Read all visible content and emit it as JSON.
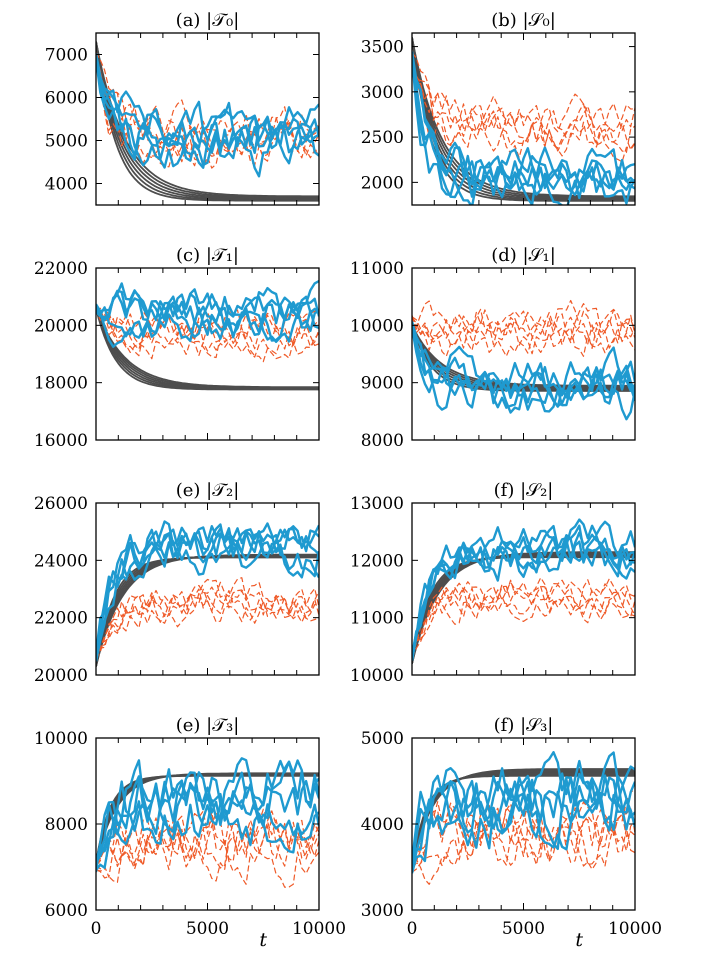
{
  "colors": {
    "model": "#4d4d4d",
    "sim_a": "#1f9ad0",
    "sim_b": "#ef5a28"
  },
  "chart_data": [
    {
      "id": "T0",
      "title": "(a) |𝒯₀|",
      "type": "line",
      "ylim": [
        3500,
        7500
      ],
      "yticks": [
        4000,
        5000,
        6000,
        7000
      ],
      "xlim": [
        0,
        10000
      ],
      "xticks": [
        0,
        5000,
        10000
      ],
      "xlabel": "",
      "series": [
        {
          "role": "model",
          "count": 6,
          "start": 7300,
          "plateau": 3650,
          "tau": 1100,
          "spread": 50,
          "noise": 0
        },
        {
          "role": "sim_b",
          "count": 5,
          "start": 7000,
          "plateau": 5050,
          "tau": 700,
          "spread": 250,
          "noise": 380,
          "seed": 11
        },
        {
          "role": "sim_a",
          "count": 5,
          "start": 7000,
          "plateau": 5050,
          "tau": 700,
          "spread": 250,
          "noise": 420,
          "seed": 29
        }
      ]
    },
    {
      "id": "S0",
      "title": "(b) |𝒮₀|",
      "type": "line",
      "ylim": [
        1750,
        3650
      ],
      "yticks": [
        2000,
        2500,
        3000,
        3500
      ],
      "xlim": [
        0,
        10000
      ],
      "xticks": [
        0,
        5000,
        10000
      ],
      "xlabel": "",
      "series": [
        {
          "role": "model",
          "count": 6,
          "start": 3600,
          "plateau": 1820,
          "tau": 1100,
          "spread": 25,
          "noise": 0
        },
        {
          "role": "sim_b",
          "count": 5,
          "start": 3400,
          "plateau": 2600,
          "tau": 700,
          "spread": 120,
          "noise": 170,
          "seed": 13
        },
        {
          "role": "sim_a",
          "count": 5,
          "start": 3400,
          "plateau": 2050,
          "tau": 700,
          "spread": 120,
          "noise": 190,
          "seed": 31
        }
      ]
    },
    {
      "id": "T1",
      "title": "(c) |𝒯₁|",
      "type": "line",
      "ylim": [
        16000,
        22000
      ],
      "yticks": [
        16000,
        18000,
        20000,
        22000
      ],
      "xlim": [
        0,
        10000
      ],
      "xticks": [
        0,
        5000,
        10000
      ],
      "xlabel": "",
      "series": [
        {
          "role": "model",
          "count": 6,
          "start": 20600,
          "plateau": 17800,
          "tau": 1100,
          "spread": 40,
          "noise": 0
        },
        {
          "role": "sim_b",
          "count": 5,
          "start": 20600,
          "plateau": 19700,
          "tau": 700,
          "spread": 300,
          "noise": 450,
          "seed": 17
        },
        {
          "role": "sim_a",
          "count": 5,
          "start": 20600,
          "plateau": 20400,
          "tau": 700,
          "spread": 400,
          "noise": 550,
          "seed": 37
        }
      ]
    },
    {
      "id": "S1",
      "title": "(d) |𝒮₁|",
      "type": "line",
      "ylim": [
        8000,
        11000
      ],
      "yticks": [
        8000,
        9000,
        10000,
        11000
      ],
      "xlim": [
        0,
        10000
      ],
      "xticks": [
        0,
        5000,
        10000
      ],
      "xlabel": "",
      "series": [
        {
          "role": "model",
          "count": 6,
          "start": 10000,
          "plateau": 8900,
          "tau": 1100,
          "spread": 45,
          "noise": 0
        },
        {
          "role": "sim_b",
          "count": 5,
          "start": 10200,
          "plateau": 9900,
          "tau": 700,
          "spread": 180,
          "noise": 260,
          "seed": 19
        },
        {
          "role": "sim_a",
          "count": 5,
          "start": 10000,
          "plateau": 8950,
          "tau": 700,
          "spread": 200,
          "noise": 280,
          "seed": 41
        }
      ]
    },
    {
      "id": "T2",
      "title": "(e) |𝒯₂|",
      "type": "line",
      "ylim": [
        20000,
        26000
      ],
      "yticks": [
        20000,
        22000,
        24000,
        26000
      ],
      "xlim": [
        0,
        10000
      ],
      "xticks": [
        0,
        5000,
        10000
      ],
      "xlabel": "",
      "series": [
        {
          "role": "model",
          "count": 6,
          "start": 20300,
          "plateau": 24150,
          "tau": 1000,
          "spread": 50,
          "noise": 0
        },
        {
          "role": "sim_b",
          "count": 5,
          "start": 20600,
          "plateau": 22500,
          "tau": 700,
          "spread": 250,
          "noise": 450,
          "seed": 23
        },
        {
          "role": "sim_a",
          "count": 5,
          "start": 20600,
          "plateau": 24500,
          "tau": 700,
          "spread": 350,
          "noise": 550,
          "seed": 43
        }
      ]
    },
    {
      "id": "S2",
      "title": "(f) |𝒮₂|",
      "type": "line",
      "ylim": [
        10000,
        13000
      ],
      "yticks": [
        10000,
        11000,
        12000,
        13000
      ],
      "xlim": [
        0,
        10000
      ],
      "xticks": [
        0,
        5000,
        10000
      ],
      "xlabel": "",
      "series": [
        {
          "role": "model",
          "count": 6,
          "start": 10200,
          "plateau": 12100,
          "tau": 1000,
          "spread": 45,
          "noise": 0
        },
        {
          "role": "sim_b",
          "count": 5,
          "start": 10300,
          "plateau": 11350,
          "tau": 700,
          "spread": 130,
          "noise": 220,
          "seed": 27
        },
        {
          "role": "sim_a",
          "count": 5,
          "start": 10300,
          "plateau": 12150,
          "tau": 700,
          "spread": 160,
          "noise": 260,
          "seed": 47
        }
      ]
    },
    {
      "id": "T3",
      "title": "(e) |𝒯₃|",
      "type": "line",
      "ylim": [
        6000,
        10000
      ],
      "yticks": [
        6000,
        8000,
        10000
      ],
      "xlim": [
        0,
        10000
      ],
      "xticks": [
        0,
        5000,
        10000
      ],
      "xlabel": "t",
      "series": [
        {
          "role": "model",
          "count": 6,
          "start": 7100,
          "plateau": 9150,
          "tau": 800,
          "spread": 30,
          "noise": 0
        },
        {
          "role": "sim_b",
          "count": 5,
          "start": 7000,
          "plateau": 7600,
          "tau": 600,
          "spread": 250,
          "noise": 500,
          "seed": 33
        },
        {
          "role": "sim_a",
          "count": 5,
          "start": 7000,
          "plateau": 8500,
          "tau": 600,
          "spread": 300,
          "noise": 550,
          "seed": 53
        }
      ]
    },
    {
      "id": "S3",
      "title": "(f) |𝒮₃|",
      "type": "line",
      "ylim": [
        3000,
        5000
      ],
      "yticks": [
        3000,
        4000,
        5000
      ],
      "xlim": [
        0,
        10000
      ],
      "xticks": [
        0,
        5000,
        10000
      ],
      "xlabel": "t",
      "series": [
        {
          "role": "model",
          "count": 6,
          "start": 3500,
          "plateau": 4600,
          "tau": 800,
          "spread": 40,
          "noise": 0
        },
        {
          "role": "sim_b",
          "count": 5,
          "start": 3500,
          "plateau": 3900,
          "tau": 600,
          "spread": 120,
          "noise": 260,
          "seed": 37
        },
        {
          "role": "sim_a",
          "count": 5,
          "start": 3500,
          "plateau": 4300,
          "tau": 600,
          "spread": 160,
          "noise": 300,
          "seed": 59
        }
      ]
    }
  ]
}
